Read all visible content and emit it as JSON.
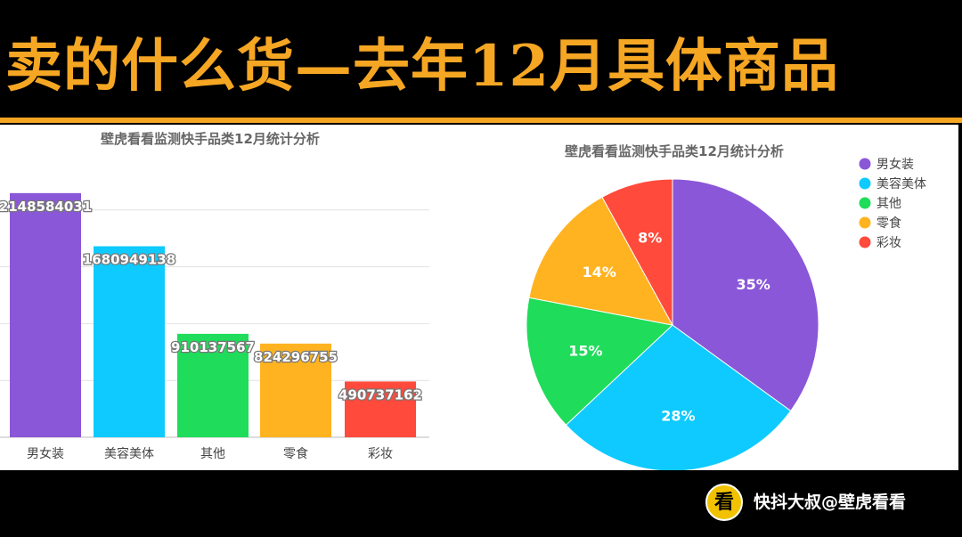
{
  "slide_title": "卖的什么货—去年12月具体商品",
  "footer": {
    "logo": "看",
    "text": "快抖大叔@壁虎看看"
  },
  "colors": {
    "title": "#f5a623",
    "rule": "#f5a623",
    "background": "#000000"
  },
  "chart_data": [
    {
      "type": "bar",
      "title": "壁虎看看监测快手品类12月统计分析",
      "categories": [
        "男女装",
        "美容美体",
        "其他",
        "零食",
        "彩妆"
      ],
      "values": [
        2148584031,
        1680949138,
        910137567,
        824296755,
        490737162
      ],
      "value_labels": [
        "2148584031",
        "1680949138",
        "910137567",
        "824296755",
        "490737162"
      ],
      "colors": [
        "#8a57d8",
        "#0fcaff",
        "#1fdc5a",
        "#ffb321",
        "#ff4a3c"
      ],
      "ylim": [
        0,
        2500000000
      ],
      "grid": true,
      "xlabel": "",
      "ylabel": ""
    },
    {
      "type": "pie",
      "title": "壁虎看看监测快手品类12月统计分析",
      "labels": [
        "男女装",
        "美容美体",
        "其他",
        "零食",
        "彩妆"
      ],
      "values": [
        35,
        28,
        15,
        14,
        8
      ],
      "value_labels": [
        "35%",
        "28%",
        "15%",
        "14%",
        "8%"
      ],
      "colors": [
        "#8a57d8",
        "#0fcaff",
        "#1fdc5a",
        "#ffb321",
        "#ff4a3c"
      ],
      "legend": "top-right"
    }
  ]
}
